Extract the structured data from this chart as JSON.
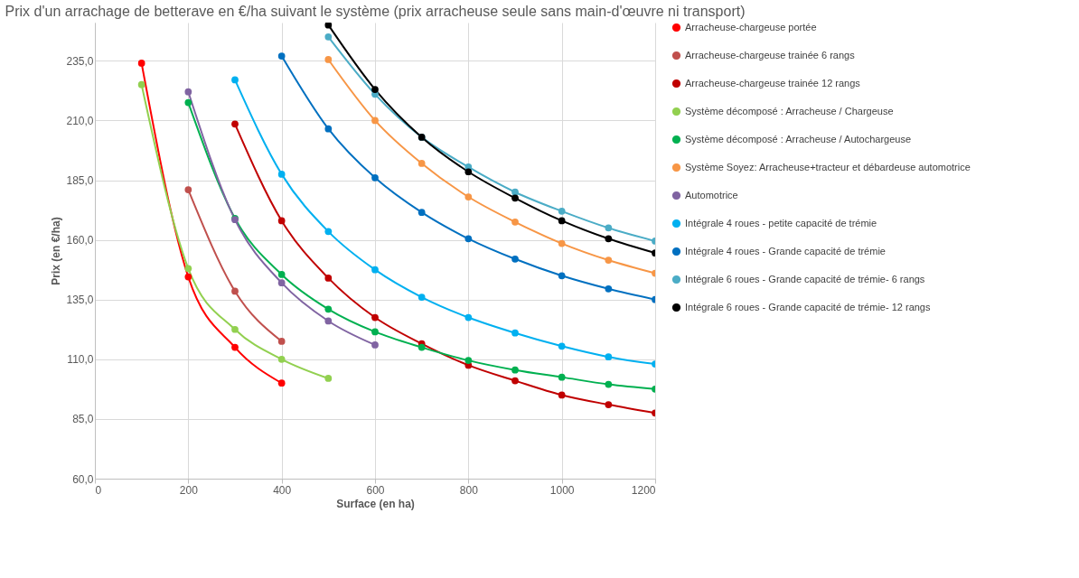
{
  "chart_data": {
    "type": "line",
    "title": "Prix d'un arrachage de betterave en €/ha suivant le système (prix arracheuse seule sans main-d'œuvre ni transport)",
    "xlabel": "Surface (en ha)",
    "ylabel": "Prix (en €/ha)",
    "x": [
      100,
      200,
      300,
      400,
      500,
      600,
      700,
      800,
      900,
      1000,
      1100,
      1200
    ],
    "series": [
      {
        "name": "Arracheuse-chargeuse portée",
        "color": "#ff0000",
        "values": [
          234,
          144.5,
          115,
          100,
          null,
          null,
          null,
          null,
          null,
          null,
          null,
          null
        ]
      },
      {
        "name": "Arracheuse-chargeuse trainée 6 rangs",
        "color": "#c0504d",
        "values": [
          null,
          181,
          138.5,
          117.5,
          null,
          null,
          null,
          null,
          null,
          null,
          null,
          null
        ]
      },
      {
        "name": "Arracheuse-chargeuse trainée 12 rangs",
        "color": "#c00000",
        "values": [
          null,
          null,
          208.5,
          168,
          144,
          127.5,
          116.5,
          107.5,
          101,
          95,
          91,
          87.5
        ]
      },
      {
        "name": "Système décomposé : Arracheuse /  Chargeuse",
        "color": "#92d050",
        "values": [
          225,
          148,
          122.5,
          110,
          102,
          null,
          null,
          null,
          null,
          null,
          null,
          null
        ]
      },
      {
        "name": "Système décomposé : Arracheuse / Autochargeuse",
        "color": "#00b050",
        "values": [
          null,
          217.5,
          169,
          145.5,
          131,
          121.5,
          115,
          109.5,
          105.5,
          102.5,
          99.5,
          97.5
        ]
      },
      {
        "name": "Système Soyez: Arracheuse+tracteur et débardeuse automotrice",
        "color": "#f79646",
        "values": [
          null,
          null,
          null,
          null,
          235.5,
          210,
          192,
          178,
          167.5,
          158.5,
          151.5,
          146
        ]
      },
      {
        "name": "Automotrice",
        "color": "#8064a2",
        "values": [
          null,
          222,
          168.5,
          142,
          126,
          116,
          null,
          null,
          null,
          null,
          null,
          null
        ]
      },
      {
        "name": "Intégrale 4 roues - petite capacité de trémie",
        "color": "#00b0f0",
        "values": [
          null,
          null,
          227,
          187.5,
          163.5,
          147.5,
          136,
          127.5,
          121,
          115.5,
          111,
          108
        ]
      },
      {
        "name": "Intégrale 4 roues - Grande capacité de trémie",
        "color": "#0070c0",
        "values": [
          null,
          null,
          null,
          237,
          206.5,
          186,
          171.5,
          160.5,
          152,
          145,
          139.5,
          135
        ]
      },
      {
        "name": "Intégrale 6 roues - Grande capacité de trémie- 6 rangs",
        "color": "#4bacc6",
        "values": [
          null,
          null,
          null,
          null,
          245,
          221,
          203,
          190.5,
          180,
          172,
          165,
          159.5
        ]
      },
      {
        "name": "Intégrale 6 roues - Grande capacité de trémie- 12 rangs",
        "color": "#000000",
        "values": [
          null,
          null,
          null,
          null,
          250,
          223,
          203,
          188.5,
          177.5,
          168,
          160.5,
          154.5
        ]
      }
    ],
    "xlim": [
      0,
      1200
    ],
    "xticks": [
      0,
      200,
      400,
      600,
      800,
      1000,
      1200
    ],
    "ylim": [
      60,
      251
    ],
    "yticks": [
      {
        "value": 60,
        "label": "60,0"
      },
      {
        "value": 85,
        "label": "85,0"
      },
      {
        "value": 110,
        "label": "110,0"
      },
      {
        "value": 135,
        "label": "135,0"
      },
      {
        "value": 160,
        "label": "160,0"
      },
      {
        "value": 185,
        "label": "185,0"
      },
      {
        "value": 210,
        "label": "210,0"
      },
      {
        "value": 235,
        "label": "235,0"
      }
    ],
    "grid": true,
    "legend": "right",
    "marker": "circle",
    "line_style": "solid"
  }
}
